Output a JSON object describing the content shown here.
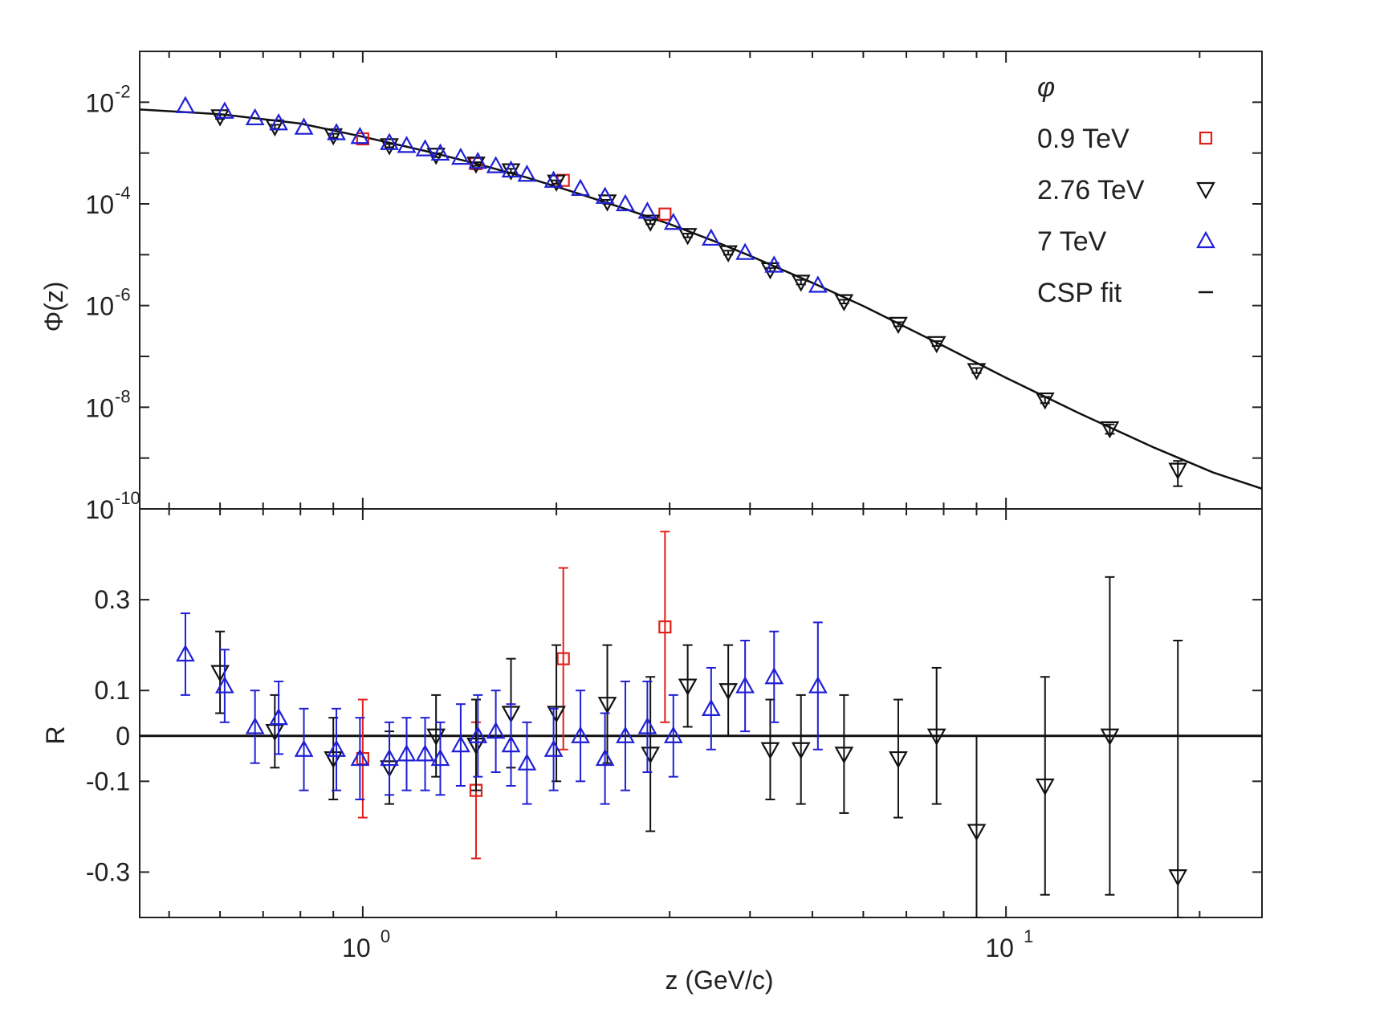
{
  "chart_data": [
    {
      "type": "scatter",
      "panel": "top",
      "ylabel": "Φ(z)",
      "yscale": "log",
      "xscale": "log",
      "xlim": [
        0.45,
        25
      ],
      "ylim": [
        1e-10,
        0.1
      ],
      "ytick_labels": [
        {
          "base": "10",
          "exp": "-2",
          "value": 0.01
        },
        {
          "base": "10",
          "exp": "-4",
          "value": 0.0001
        },
        {
          "base": "10",
          "exp": "-6",
          "value": 1e-06
        },
        {
          "base": "10",
          "exp": "-8",
          "value": 1e-08
        },
        {
          "base": "10",
          "exp": "-10",
          "value": 1e-10
        }
      ],
      "legend": {
        "title": "φ",
        "position": "top-right",
        "entries": [
          {
            "label": "0.9 TeV",
            "marker": "square",
            "color": "#e0201b"
          },
          {
            "label": "2.76 TeV",
            "marker": "triangle-down",
            "color": "#111111"
          },
          {
            "label": "7 TeV",
            "marker": "triangle-up",
            "color": "#1f1fd6"
          },
          {
            "label": "CSP fit",
            "marker": "line",
            "color": "#111111"
          }
        ]
      },
      "fit_curve": {
        "name": "CSP fit",
        "x": [
          0.45,
          0.6,
          0.8,
          1.0,
          1.25,
          1.5,
          1.8,
          2.1,
          2.5,
          3.0,
          3.5,
          4.0,
          5.0,
          6.0,
          8.0,
          10,
          13,
          17,
          21,
          25
        ],
        "y": [
          0.0072,
          0.0058,
          0.0038,
          0.0021,
          0.0011,
          0.00062,
          0.00033,
          0.00018,
          8.8e-05,
          4e-05,
          1.9e-05,
          9.5e-06,
          2.8e-06,
          9.8e-07,
          1.6e-07,
          3.8e-08,
          7.6e-09,
          1.6e-09,
          5.2e-10,
          2.5e-10
        ]
      },
      "series": [
        {
          "name": "0.9 TeV",
          "marker": "square",
          "color": "#e0201b",
          "x": [
            1.0,
            1.5,
            2.05,
            2.95
          ],
          "y": [
            0.0019,
            0.00062,
            0.00029,
            6.3e-05
          ]
        },
        {
          "name": "2.76 TeV",
          "marker": "triangle-down",
          "color": "#111111",
          "x": [
            0.6,
            0.73,
            0.9,
            1.1,
            1.3,
            1.5,
            1.7,
            2.0,
            2.4,
            2.8,
            3.2,
            3.7,
            4.3,
            4.8,
            5.6,
            6.8,
            7.8,
            9.0,
            11.5,
            14.5,
            18.5
          ],
          "y": [
            0.0052,
            0.0033,
            0.0022,
            0.0014,
            0.00091,
            0.00061,
            0.00045,
            0.00027,
            0.00011,
            4.4e-05,
            2.4e-05,
            1.1e-05,
            5.1e-06,
            2.9e-06,
            1.2e-06,
            4.3e-07,
            1.8e-07,
            5.3e-08,
            1.4e-08,
            3.8e-09,
            5.8e-10
          ],
          "yerr": [
            0.0005,
            0.0003,
            0.0002,
            0.0001,
            8e-05,
            5e-05,
            4e-05,
            2e-05,
            1e-05,
            4e-06,
            2e-06,
            1e-06,
            4e-07,
            3e-07,
            1e-07,
            4e-08,
            2e-08,
            6e-09,
            2e-09,
            8e-10,
            3e-10
          ]
        },
        {
          "name": "7 TeV",
          "marker": "triangle-up",
          "color": "#1f1fd6",
          "x": [
            0.53,
            0.61,
            0.68,
            0.74,
            0.81,
            0.91,
            0.99,
            1.1,
            1.17,
            1.25,
            1.32,
            1.42,
            1.51,
            1.61,
            1.7,
            1.8,
            1.98,
            2.18,
            2.38,
            2.56,
            2.77,
            3.04,
            3.48,
            3.93,
            4.36,
            5.1
          ],
          "y": [
            0.0085,
            0.0066,
            0.0049,
            0.0039,
            0.0032,
            0.0025,
            0.0021,
            0.0016,
            0.0014,
            0.0012,
            0.00099,
            0.00082,
            0.00068,
            0.00056,
            0.00046,
            0.00038,
            0.00029,
            0.0002,
            0.00014,
            0.0001,
            7.1e-05,
            4.3e-05,
            2.1e-05,
            1.1e-05,
            6.2e-06,
            2.5e-06
          ]
        }
      ]
    },
    {
      "type": "scatter",
      "panel": "bottom",
      "xlabel": "z (GeV/c)",
      "ylabel": "R",
      "xscale": "log",
      "xlim": [
        0.45,
        25
      ],
      "ylim": [
        -0.4,
        0.5
      ],
      "yticks": [
        0.3,
        0.1,
        0,
        -0.1,
        -0.3
      ],
      "ytick_labels": [
        "0.3",
        "0.1",
        "0",
        "-0.1",
        "-0.3"
      ],
      "xtick_labels": [
        {
          "base": "10",
          "exp": "0",
          "value": 1
        },
        {
          "base": "10",
          "exp": "1",
          "value": 10
        }
      ],
      "reference_line": 0,
      "series": [
        {
          "name": "0.9 TeV",
          "marker": "square",
          "color": "#e0201b",
          "x": [
            1.0,
            1.5,
            2.05,
            2.95
          ],
          "y": [
            -0.05,
            -0.12,
            0.17,
            0.24
          ],
          "yerr": [
            0.13,
            0.15,
            0.2,
            0.21
          ]
        },
        {
          "name": "2.76 TeV",
          "marker": "triangle-down",
          "color": "#111111",
          "x": [
            0.6,
            0.73,
            0.9,
            1.1,
            1.3,
            1.5,
            1.7,
            2.0,
            2.4,
            2.8,
            3.2,
            3.7,
            4.3,
            4.8,
            5.6,
            6.8,
            7.8,
            9.0,
            11.5,
            14.5,
            18.5
          ],
          "y": [
            0.14,
            0.01,
            -0.05,
            -0.07,
            0.0,
            -0.02,
            0.05,
            0.05,
            0.07,
            -0.04,
            0.11,
            0.1,
            -0.03,
            -0.03,
            -0.04,
            -0.05,
            0.0,
            -0.21,
            -0.11,
            0.0,
            -0.31
          ],
          "yerr": [
            0.09,
            0.08,
            0.09,
            0.08,
            0.09,
            0.1,
            0.12,
            0.15,
            0.13,
            0.17,
            0.09,
            0.1,
            0.11,
            0.12,
            0.13,
            0.13,
            0.15,
            0.21,
            0.24,
            0.35,
            0.52
          ]
        },
        {
          "name": "7 TeV",
          "marker": "triangle-up",
          "color": "#1f1fd6",
          "x": [
            0.53,
            0.61,
            0.68,
            0.74,
            0.81,
            0.91,
            0.99,
            1.1,
            1.17,
            1.25,
            1.32,
            1.42,
            1.51,
            1.61,
            1.7,
            1.8,
            1.98,
            2.18,
            2.38,
            2.56,
            2.77,
            3.04,
            3.48,
            3.93,
            4.36,
            5.1
          ],
          "y": [
            0.18,
            0.11,
            0.02,
            0.04,
            -0.03,
            -0.03,
            -0.05,
            -0.05,
            -0.04,
            -0.04,
            -0.05,
            -0.02,
            0.0,
            0.01,
            -0.02,
            -0.06,
            -0.03,
            0.0,
            -0.05,
            0.0,
            0.02,
            0.0,
            0.06,
            0.11,
            0.13,
            0.11
          ],
          "yerr": [
            0.09,
            0.08,
            0.08,
            0.08,
            0.09,
            0.09,
            0.09,
            0.08,
            0.08,
            0.08,
            0.08,
            0.09,
            0.09,
            0.09,
            0.09,
            0.09,
            0.09,
            0.1,
            0.1,
            0.12,
            0.1,
            0.09,
            0.09,
            0.1,
            0.1,
            0.14
          ]
        }
      ]
    }
  ]
}
